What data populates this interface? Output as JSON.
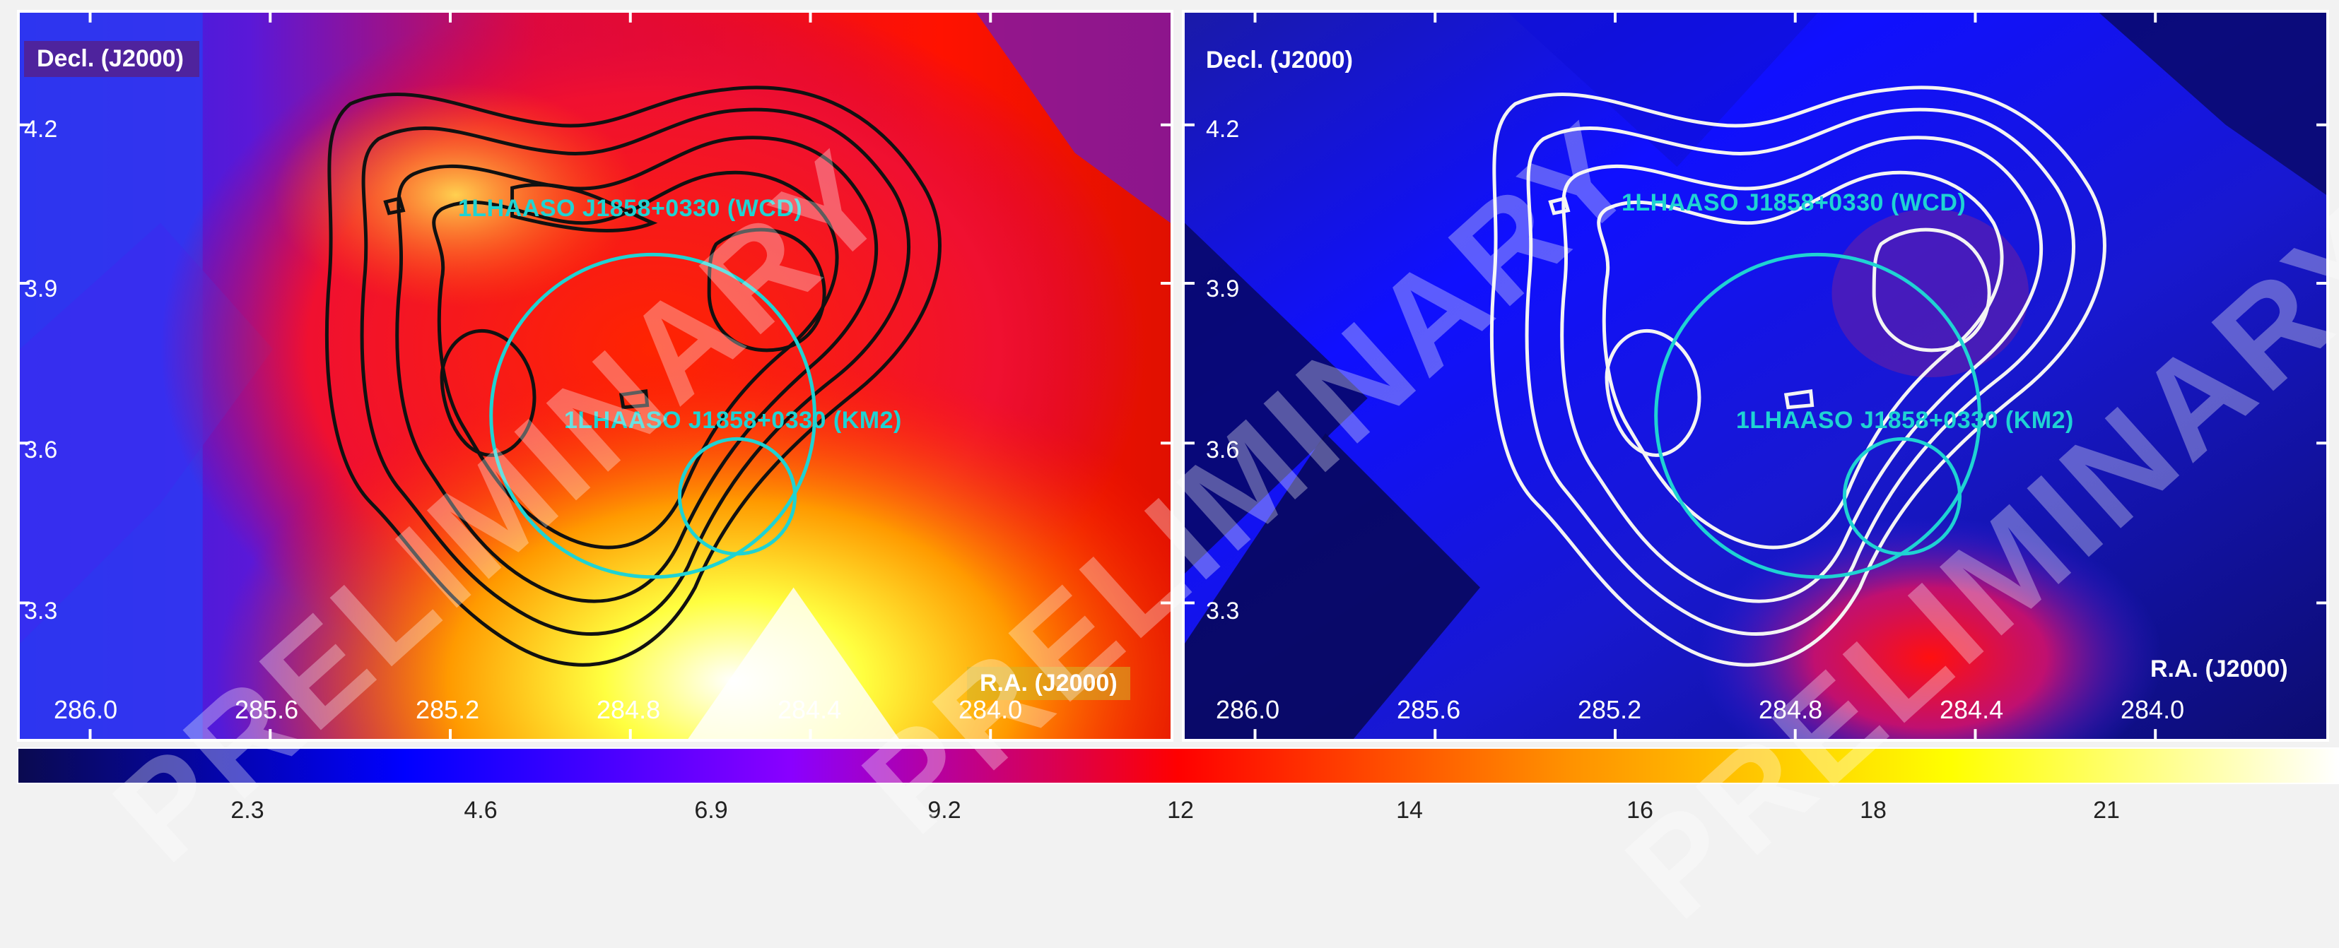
{
  "left_panel": {
    "ylabel": "Decl. (J2000)",
    "xlabel": "R.A. (J2000)",
    "y_ticks": [
      "4.2",
      "3.9",
      "3.6",
      "3.3"
    ],
    "x_ticks": [
      "286.0",
      "285.6",
      "285.2",
      "284.8",
      "284.4",
      "284.0"
    ],
    "source_wcd": "1LHAASO J1858+0330 (WCD)",
    "source_km2": "1LHAASO J1858+0330 (KM2)",
    "contour_color": "#111111"
  },
  "right_panel": {
    "ylabel": "Decl. (J2000)",
    "xlabel": "R.A. (J2000)",
    "y_ticks": [
      "4.2",
      "3.9",
      "3.6",
      "3.3"
    ],
    "x_ticks": [
      "286.0",
      "285.6",
      "285.2",
      "284.8",
      "284.4",
      "284.0"
    ],
    "source_wcd": "1LHAASO J1858+0330 (WCD)",
    "source_km2": "1LHAASO J1858+0330 (KM2)",
    "contour_color": "#f4f4f4"
  },
  "colorbar": {
    "labels": [
      "2.3",
      "4.6",
      "6.9",
      "9.2",
      "12",
      "14",
      "16",
      "18",
      "21"
    ],
    "colors": [
      "#0a0a50",
      "#0000ff",
      "#8a00ff",
      "#ff0000",
      "#ff9000",
      "#ffff00",
      "#ffffff"
    ]
  },
  "watermark": "PRELIMINARY",
  "circle_color": "#1fd3d3"
}
